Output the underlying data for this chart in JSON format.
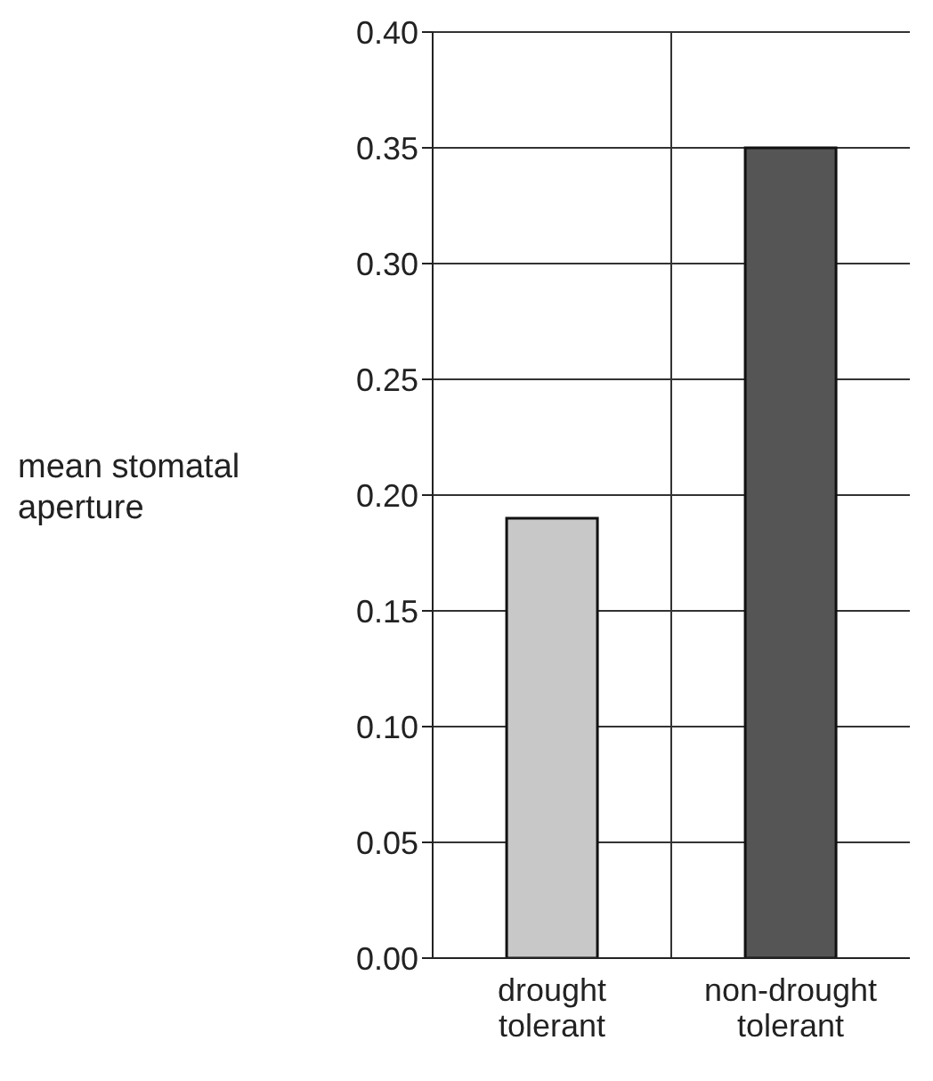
{
  "chart_data": {
    "type": "bar",
    "ylabel": "mean stomatal aperture",
    "categories": [
      "drought tolerant",
      "non-drought tolerant"
    ],
    "values": [
      0.19,
      0.35
    ],
    "colors": [
      "#c8c8c8",
      "#555555"
    ],
    "ylim": [
      0,
      0.4
    ],
    "yticks": [
      {
        "value": 0,
        "label": "0.00"
      },
      {
        "value": 0.05,
        "label": "0.05"
      },
      {
        "value": 0.1,
        "label": "0.10"
      },
      {
        "value": 0.15,
        "label": "0.15"
      },
      {
        "value": 0.2,
        "label": "0.20"
      },
      {
        "value": 0.25,
        "label": "0.25"
      },
      {
        "value": 0.3,
        "label": "0.30"
      },
      {
        "value": 0.35,
        "label": "0.35"
      },
      {
        "value": 0.4,
        "label": "0.40"
      }
    ],
    "grid": true
  }
}
